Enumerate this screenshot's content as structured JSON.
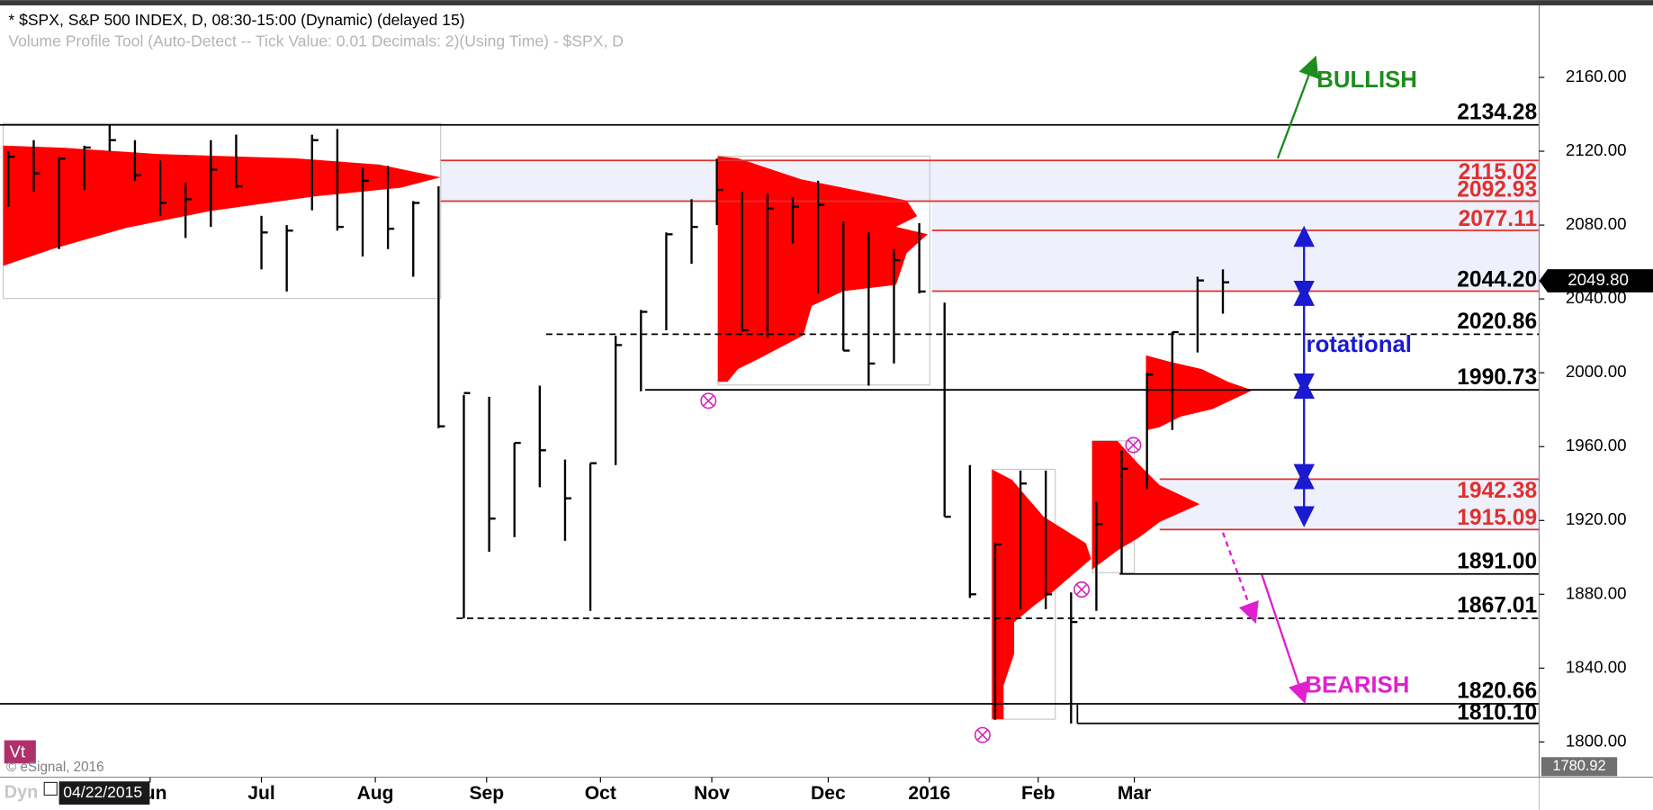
{
  "chart_data": {
    "type": "ohlc",
    "title": "* $SPX, S&P 500 INDEX, D, 08:30-15:00 (Dynamic) (delayed 15)",
    "subtitle": "Volume Profile Tool (Auto-Detect -- Tick Value: 0.01 Decimals: 2)(Using Time) - $SPX, D",
    "ylim": [
      1780.92,
      2199
    ],
    "yticks": [
      {
        "value": 2160,
        "label": "2160.00"
      },
      {
        "value": 2120,
        "label": "2120.00"
      },
      {
        "value": 2080,
        "label": "2080.00"
      },
      {
        "value": 2040,
        "label": "2040.00"
      },
      {
        "value": 2000,
        "label": "2000.00"
      },
      {
        "value": 1960,
        "label": "1960.00"
      },
      {
        "value": 1920,
        "label": "1920.00"
      },
      {
        "value": 1880,
        "label": "1880.00"
      },
      {
        "value": 1840,
        "label": "1840.00"
      },
      {
        "value": 1800,
        "label": "1800.00"
      }
    ],
    "xticks": [
      {
        "value": 5.6,
        "label": "Jun"
      },
      {
        "value": 10,
        "label": "Jul"
      },
      {
        "value": 14.5,
        "label": "Aug"
      },
      {
        "value": 18.9,
        "label": "Sep"
      },
      {
        "value": 23.4,
        "label": "Oct"
      },
      {
        "value": 27.8,
        "label": "Nov"
      },
      {
        "value": 32.4,
        "label": "Dec"
      },
      {
        "value": 36.4,
        "label": "2016"
      },
      {
        "value": 40.7,
        "label": "Feb"
      },
      {
        "value": 44.5,
        "label": "Mar"
      }
    ],
    "categories": [
      null,
      null,
      null,
      null,
      null,
      null,
      null,
      null,
      null,
      null,
      null,
      null,
      null,
      null,
      null,
      null,
      null,
      null,
      null,
      null,
      null,
      null,
      null,
      null,
      null,
      null,
      null,
      null,
      null,
      null,
      null,
      null,
      null,
      null,
      null,
      null,
      null,
      null,
      null,
      null,
      null,
      null,
      null,
      null,
      null,
      null,
      null,
      null,
      null
    ],
    "high": [
      2120,
      2126,
      2117,
      2123,
      2134,
      2126,
      2115,
      2103,
      2126,
      2129,
      2085,
      2080,
      2129,
      2132,
      2111,
      2112,
      2093,
      2101,
      1988,
      1987,
      1962,
      1993,
      1953,
      1951,
      2020,
      2034,
      2076,
      2094,
      2116,
      2098,
      2097,
      2095,
      2104,
      2082,
      2076,
      2067,
      2081,
      2038,
      1950,
      1908,
      1947,
      1947,
      1881,
      1930,
      1958,
      2000,
      2022,
      2052,
      2056
    ],
    "low": [
      2090,
      2098,
      2067,
      2099,
      2120,
      2104,
      2085,
      2073,
      2079,
      2100,
      2056,
      2044,
      2088,
      2077,
      2063,
      2067,
      2052,
      1970,
      1867,
      1903,
      1911,
      1938,
      1909,
      1871,
      1950,
      1990,
      2023,
      2059,
      2080,
      2022,
      2019,
      2070,
      2043,
      2012,
      1993,
      2005,
      2043,
      1922,
      1878,
      1812,
      1872,
      1872,
      1810,
      1871,
      1891,
      1937,
      1969,
      2011,
      2032
    ],
    "close": [
      2117,
      2108,
      2116,
      2122,
      2126,
      2107,
      2092,
      2094,
      2110,
      2101,
      2076,
      2077,
      2126,
      2079,
      2104,
      2078,
      2092,
      1971,
      1989,
      1921,
      1962,
      1958,
      1932,
      1951,
      2015,
      2033,
      2075,
      2079,
      2099,
      2023,
      2089,
      2090,
      2091,
      2012,
      2005,
      2061,
      2044,
      1922,
      1880,
      1907,
      1940,
      1880,
      1865,
      1918,
      1948,
      1999,
      2022,
      2050,
      2049
    ],
    "color": "#000000",
    "levels": [
      {
        "value": 2134.28,
        "label": "2134.28",
        "color": "#000000",
        "style": "solid"
      },
      {
        "value": 2115.02,
        "label": "2115.02",
        "color": "#e0302f",
        "style": "solid"
      },
      {
        "value": 2092.93,
        "label": "2092.93",
        "color": "#e0302f",
        "style": "solid"
      },
      {
        "value": 2077.11,
        "label": "2077.11",
        "color": "#e0302f",
        "style": "solid"
      },
      {
        "value": 2044.2,
        "label": "2044.20",
        "color": "#000000",
        "style": "solid-red"
      },
      {
        "value": 2020.86,
        "label": "2020.86",
        "color": "#000000",
        "style": "dashed"
      },
      {
        "value": 1990.73,
        "label": "1990.73",
        "color": "#000000",
        "style": "solid"
      },
      {
        "value": 1942.38,
        "label": "1942.38",
        "color": "#e0302f",
        "style": "solid"
      },
      {
        "value": 1915.09,
        "label": "1915.09",
        "color": "#e0302f",
        "style": "solid"
      },
      {
        "value": 1891,
        "label": "1891.00",
        "color": "#000000",
        "style": "solid"
      },
      {
        "value": 1867.01,
        "label": "1867.01",
        "color": "#000000",
        "style": "dashed"
      },
      {
        "value": 1820.66,
        "label": "1820.66",
        "color": "#000000",
        "style": "solid"
      },
      {
        "value": 1810.1,
        "label": "1810.10",
        "color": "#000000",
        "style": "solid"
      }
    ],
    "zones": [
      [
        2115.02,
        2092.93
      ],
      [
        2092.93,
        2044.2
      ],
      [
        1942.38,
        1915.09
      ]
    ],
    "last_price": {
      "value": 2049.8,
      "label": "2049.80"
    },
    "annotations": {
      "bullish": "BULLISH",
      "bearish": "BEARISH",
      "rotational": "rotational"
    },
    "watermark": "Vt",
    "copyright": "© eSignal, 2016",
    "cursor_date": "04/22/2015",
    "dyn": "Dyn"
  }
}
